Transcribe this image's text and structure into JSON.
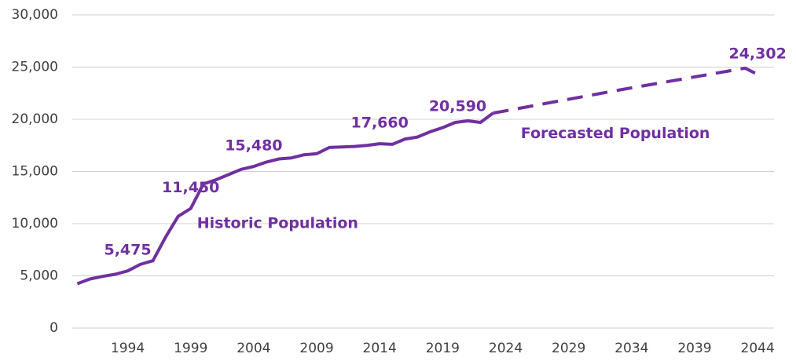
{
  "chart_data": {
    "type": "line",
    "x": [
      1990,
      1991,
      1992,
      1993,
      1994,
      1995,
      1996,
      1997,
      1998,
      1999,
      2000,
      2001,
      2002,
      2003,
      2004,
      2005,
      2006,
      2007,
      2008,
      2009,
      2010,
      2011,
      2012,
      2013,
      2014,
      2015,
      2016,
      2017,
      2018,
      2019,
      2020,
      2021,
      2022,
      2023,
      2028,
      2033,
      2038,
      2043,
      2044
    ],
    "series": [
      {
        "name": "Historic Population",
        "color": "#7030a0",
        "values": [
          4250,
          4700,
          4950,
          5150,
          5475,
          6100,
          6450,
          8700,
          10700,
          11450,
          13800,
          14200,
          14700,
          15200,
          15480,
          15900,
          16200,
          16300,
          16600,
          16700,
          17300,
          17350,
          17400,
          17500,
          17660,
          17600,
          18100,
          18300,
          18800,
          19200,
          19700,
          19850,
          19700,
          20590,
          null,
          null,
          null,
          null,
          null
        ],
        "value_labels": [
          null,
          null,
          null,
          null,
          "5,475",
          null,
          null,
          null,
          null,
          "11,450",
          null,
          null,
          null,
          null,
          "15,480",
          null,
          null,
          null,
          null,
          null,
          null,
          null,
          null,
          null,
          "17,660",
          null,
          null,
          null,
          null,
          null,
          null,
          null,
          null,
          "20,590",
          null,
          null,
          null,
          null,
          null
        ]
      },
      {
        "name": "Forecasted Population",
        "color": "#7030a0",
        "dashed": true,
        "values": [
          null,
          null,
          null,
          null,
          null,
          null,
          null,
          null,
          null,
          null,
          null,
          null,
          null,
          null,
          null,
          null,
          null,
          null,
          null,
          null,
          null,
          null,
          null,
          null,
          null,
          null,
          null,
          null,
          null,
          null,
          null,
          null,
          null,
          20590,
          21700,
          22800,
          23850,
          24900,
          24302
        ],
        "value_labels": [
          null,
          null,
          null,
          null,
          null,
          null,
          null,
          null,
          null,
          null,
          null,
          null,
          null,
          null,
          null,
          null,
          null,
          null,
          null,
          null,
          null,
          null,
          null,
          null,
          null,
          null,
          null,
          null,
          null,
          null,
          null,
          null,
          null,
          null,
          null,
          null,
          null,
          null,
          "24,302"
        ]
      }
    ],
    "xlim": [
      1989.6,
      2045.3
    ],
    "xticks": [
      1994,
      1999,
      2004,
      2009,
      2014,
      2019,
      2024,
      2029,
      2034,
      2039,
      2044
    ],
    "ylim": [
      0,
      30000
    ],
    "yticks": [
      0,
      {
        "value": 5000,
        "label": "5,000"
      },
      {
        "value": 10000,
        "label": "10,000"
      },
      {
        "value": 15000,
        "label": "15,000"
      },
      {
        "value": 20000,
        "label": "20,000"
      },
      {
        "value": 25000,
        "label": "25,000"
      },
      {
        "value": 30000,
        "label": "30,000"
      }
    ],
    "grid": true
  }
}
